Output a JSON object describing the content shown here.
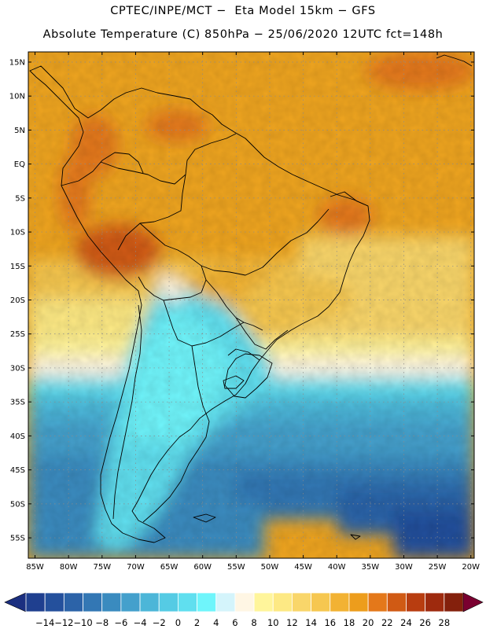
{
  "header": {
    "line1": "CPTEC/INPE/MCT −  Eta Model 15km − GFS",
    "line2": "Absolute Temperature (C) 850hPa − 25/06/2020 12UTC fct=148h"
  },
  "map": {
    "lat_labels": [
      "15N",
      "10N",
      "5N",
      "EQ",
      "5S",
      "10S",
      "15S",
      "20S",
      "25S",
      "30S",
      "35S",
      "40S",
      "45S",
      "50S",
      "55S"
    ],
    "lon_labels": [
      "85W",
      "80W",
      "75W",
      "70W",
      "65W",
      "60W",
      "55W",
      "50W",
      "45W",
      "40W",
      "35W",
      "30W",
      "25W",
      "20W"
    ],
    "lat_values": [
      15,
      10,
      5,
      0,
      -5,
      -10,
      -15,
      -20,
      -25,
      -30,
      -35,
      -40,
      -45,
      -50,
      -55
    ],
    "lon_values": [
      -85,
      -80,
      -75,
      -70,
      -65,
      -60,
      -55,
      -50,
      -45,
      -40,
      -35,
      -30,
      -25,
      -20
    ],
    "lat_range": [
      -58,
      16.5
    ],
    "lon_range": [
      -86,
      -19.5
    ]
  },
  "legend": {
    "labels": [
      "-14",
      "-12",
      "-10",
      "-8",
      "-6",
      "-4",
      "-2",
      "0",
      "2",
      "4",
      "6",
      "8",
      "10",
      "12",
      "14",
      "16",
      "18",
      "20",
      "22",
      "24",
      "26",
      "28"
    ],
    "colors": [
      "#1f3f8f",
      "#24509c",
      "#2c63a8",
      "#3377b4",
      "#3a8bbf",
      "#44a0cc",
      "#4cb6d8",
      "#55cbe4",
      "#60dfef",
      "#6ff5fb",
      "#d4f4fb",
      "#fff6e4",
      "#fff59b",
      "#fde984",
      "#f9d66a",
      "#f6c750",
      "#f2b233",
      "#ed9d1c",
      "#e4781a",
      "#d05a14",
      "#b83d10",
      "#9e2a0e",
      "#84200c"
    ],
    "under_color": "#1b2f80",
    "over_color": "#7a0030"
  }
}
